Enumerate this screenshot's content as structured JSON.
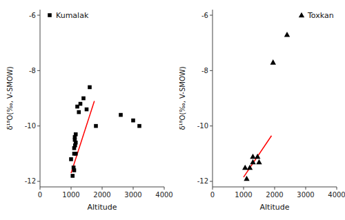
{
  "chart_data": [
    {
      "type": "scatter",
      "xlabel": "Altitude",
      "ylabel": "δ¹⁸O(‰, V-SMOW)",
      "xlim": [
        0,
        4000
      ],
      "ylim": [
        -12.2,
        -5.8
      ],
      "xticks": [
        0,
        1000,
        2000,
        3000,
        4000
      ],
      "yticks": [
        -12,
        -10,
        -8,
        -6
      ],
      "legend": "upper left",
      "series": [
        {
          "name": "Kumalak",
          "type": "scatter",
          "marker": "square",
          "color": "black",
          "x": [
            1000,
            1050,
            1080,
            1100,
            1100,
            1100,
            1120,
            1120,
            1130,
            1150,
            1150,
            1150,
            1200,
            1250,
            1300,
            1400,
            1500,
            1600,
            1800,
            2600,
            3000,
            3200
          ],
          "values": [
            -11.2,
            -11.8,
            -11.5,
            -11.6,
            -11.0,
            -10.8,
            -10.5,
            -10.4,
            -10.7,
            -10.6,
            -10.3,
            -11.0,
            -9.3,
            -9.5,
            -9.2,
            -9.0,
            -9.4,
            -8.6,
            -10.0,
            -9.6,
            -9.8,
            -10.0
          ]
        },
        {
          "type": "line",
          "color": "red",
          "x": [
            1000,
            1750
          ],
          "values": [
            -11.7,
            -9.1
          ]
        }
      ]
    },
    {
      "type": "scatter",
      "xlabel": "Altitude",
      "ylabel": "δ¹⁸O(‰, V-SMOW)",
      "xlim": [
        0,
        4000
      ],
      "ylim": [
        -12.2,
        -5.8
      ],
      "xticks": [
        0,
        1000,
        2000,
        3000,
        4000
      ],
      "yticks": [
        -12,
        -10,
        -8,
        -6
      ],
      "legend": "upper right",
      "series": [
        {
          "name": "Toxkan",
          "type": "scatter",
          "marker": "triangle",
          "color": "black",
          "x": [
            1050,
            1100,
            1200,
            1300,
            1300,
            1450,
            1500,
            1950,
            2400
          ],
          "values": [
            -11.5,
            -11.9,
            -11.5,
            -11.1,
            -11.3,
            -11.1,
            -11.3,
            -7.7,
            -6.7
          ]
        },
        {
          "type": "line",
          "color": "red",
          "x": [
            1000,
            1900
          ],
          "values": [
            -11.85,
            -10.35
          ]
        }
      ]
    }
  ]
}
